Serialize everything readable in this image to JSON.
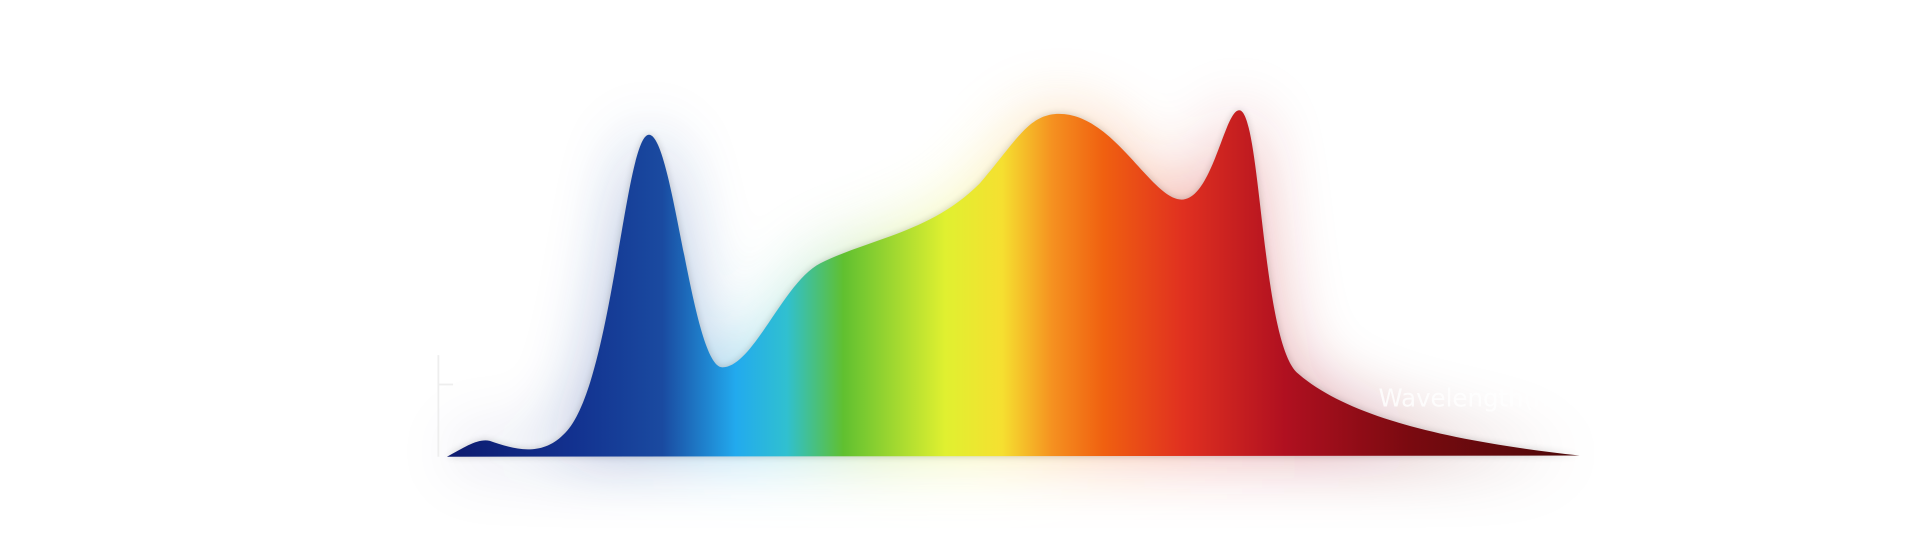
{
  "axis": {
    "x_label": "Wavelength(nm)"
  }
}
